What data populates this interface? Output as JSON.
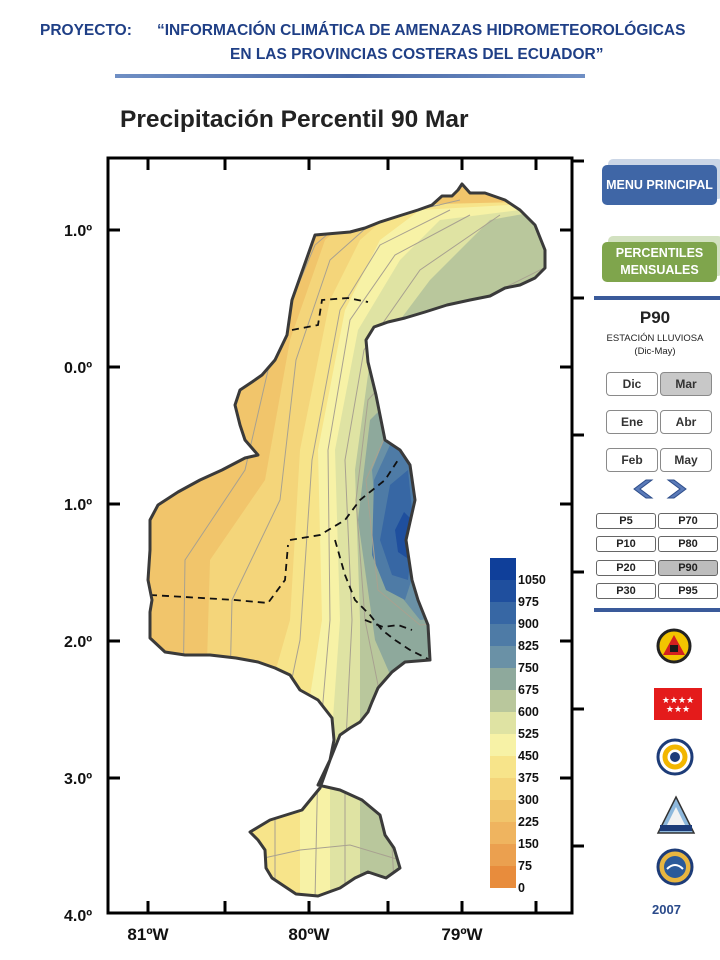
{
  "header": {
    "label": "PROYECTO:",
    "line1": "“INFORMACIÓN CLIMÁTICA DE AMENAZAS HIDROMETEOROLÓGICAS",
    "line2": "EN LAS PROVINCIAS COSTERAS DEL ECUADOR”"
  },
  "map": {
    "title": "Precipitación Percentil 90 Mar",
    "lat_labels": [
      "1.0º",
      "0.0º",
      "1.0º",
      "2.0º",
      "3.0º",
      "4.0º"
    ],
    "lon_labels": [
      "81ºW",
      "80ºW",
      "79ºW"
    ],
    "legend": {
      "values": [
        "1050",
        "975",
        "900",
        "825",
        "750",
        "675",
        "600",
        "525",
        "450",
        "375",
        "300",
        "225",
        "150",
        "75",
        "0"
      ],
      "colors": [
        "#0f3f9a",
        "#1f4f9e",
        "#3767a4",
        "#4e7ba6",
        "#6a91a6",
        "#8ea99c",
        "#b9c79c",
        "#dfe3a3",
        "#f7f2a6",
        "#f7e48a",
        "#f4d57a",
        "#f1c56b",
        "#efb45f",
        "#eba04f",
        "#e88c3c"
      ]
    }
  },
  "sidebar": {
    "menu_button": "MENU PRINCIPAL",
    "percentiles_button": "PERCENTILES MENSUALES",
    "percentile_title": "P90",
    "season": "ESTACIÓN LLUVIOSA",
    "season_range": "(Dic-May)",
    "months": [
      {
        "label": "Dic",
        "selected": false
      },
      {
        "label": "Mar",
        "selected": true
      },
      {
        "label": "Ene",
        "selected": false
      },
      {
        "label": "Abr",
        "selected": false
      },
      {
        "label": "Feb",
        "selected": false
      },
      {
        "label": "May",
        "selected": false
      }
    ],
    "percentiles": [
      {
        "label": "P5",
        "selected": false
      },
      {
        "label": "P70",
        "selected": false
      },
      {
        "label": "P10",
        "selected": false
      },
      {
        "label": "P80",
        "selected": false
      },
      {
        "label": "P20",
        "selected": false
      },
      {
        "label": "P90",
        "selected": true
      },
      {
        "label": "P30",
        "selected": false
      },
      {
        "label": "P95",
        "selected": false
      }
    ],
    "logos": [
      "civil-defense-logo",
      "flag-logo",
      "institute-logo",
      "inamhi-logo",
      "navy-seal-logo"
    ],
    "year": "2007"
  }
}
